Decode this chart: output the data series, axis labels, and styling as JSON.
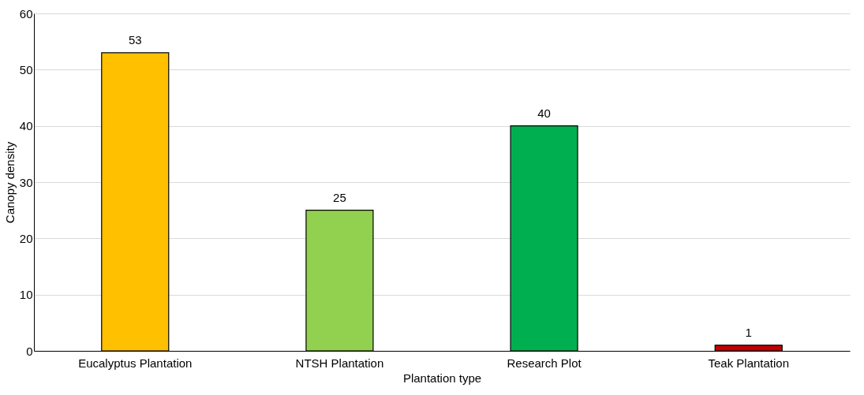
{
  "chart_data": {
    "type": "bar",
    "xlabel": "Plantation type",
    "ylabel": "Canopy density",
    "categories": [
      "Eucalyptus Plantation",
      "NTSH Plantation",
      "Research Plot",
      "Teak Plantation"
    ],
    "values": [
      53,
      25,
      40,
      1
    ],
    "colors": [
      "#ffc000",
      "#92d050",
      "#00b050",
      "#c00000"
    ],
    "ylim": [
      0,
      60
    ],
    "yticks": [
      0,
      10,
      20,
      30,
      40,
      50,
      60
    ],
    "grid": "y",
    "data_labels": true
  }
}
